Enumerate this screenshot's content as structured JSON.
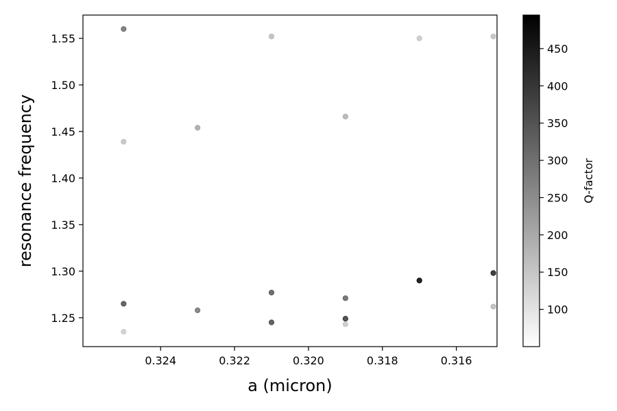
{
  "chart_data": {
    "type": "scatter",
    "title": "",
    "xlabel": "a (micron)",
    "ylabel": "resonance frequency",
    "x_inverted": true,
    "xlim": [
      0.3261,
      0.3149
    ],
    "ylim": [
      1.219,
      1.575
    ],
    "grid": false,
    "x_ticks": [
      0.324,
      0.322,
      0.32,
      0.318,
      0.316
    ],
    "x_tick_labels": [
      "0.324",
      "0.322",
      "0.320",
      "0.318",
      "0.316"
    ],
    "y_ticks": [
      1.25,
      1.3,
      1.35,
      1.4,
      1.45,
      1.5,
      1.55
    ],
    "y_tick_labels": [
      "1.25",
      "1.30",
      "1.35",
      "1.40",
      "1.45",
      "1.50",
      "1.55"
    ],
    "colorbar": {
      "label": "Q-factor",
      "range": [
        50,
        495
      ],
      "ticks": [
        100,
        150,
        200,
        250,
        300,
        350,
        400,
        450
      ],
      "tick_labels": [
        "100",
        "150",
        "200",
        "250",
        "300",
        "350",
        "400",
        "450"
      ],
      "colormap": "Greys",
      "low_color": "#ffffff",
      "high_color": "#000000"
    },
    "points": [
      {
        "x": 0.325,
        "y": 1.56,
        "q": 300
      },
      {
        "x": 0.325,
        "y": 1.439,
        "q": 160
      },
      {
        "x": 0.325,
        "y": 1.265,
        "q": 360
      },
      {
        "x": 0.325,
        "y": 1.235,
        "q": 140
      },
      {
        "x": 0.323,
        "y": 1.454,
        "q": 205
      },
      {
        "x": 0.323,
        "y": 1.258,
        "q": 290
      },
      {
        "x": 0.321,
        "y": 1.552,
        "q": 170
      },
      {
        "x": 0.321,
        "y": 1.277,
        "q": 345
      },
      {
        "x": 0.321,
        "y": 1.245,
        "q": 365
      },
      {
        "x": 0.319,
        "y": 1.466,
        "q": 190
      },
      {
        "x": 0.319,
        "y": 1.271,
        "q": 320
      },
      {
        "x": 0.319,
        "y": 1.249,
        "q": 400
      },
      {
        "x": 0.319,
        "y": 1.243,
        "q": 150
      },
      {
        "x": 0.317,
        "y": 1.55,
        "q": 150
      },
      {
        "x": 0.317,
        "y": 1.29,
        "q": 495
      },
      {
        "x": 0.315,
        "y": 1.552,
        "q": 165
      },
      {
        "x": 0.315,
        "y": 1.298,
        "q": 440
      },
      {
        "x": 0.315,
        "y": 1.262,
        "q": 175
      }
    ]
  }
}
